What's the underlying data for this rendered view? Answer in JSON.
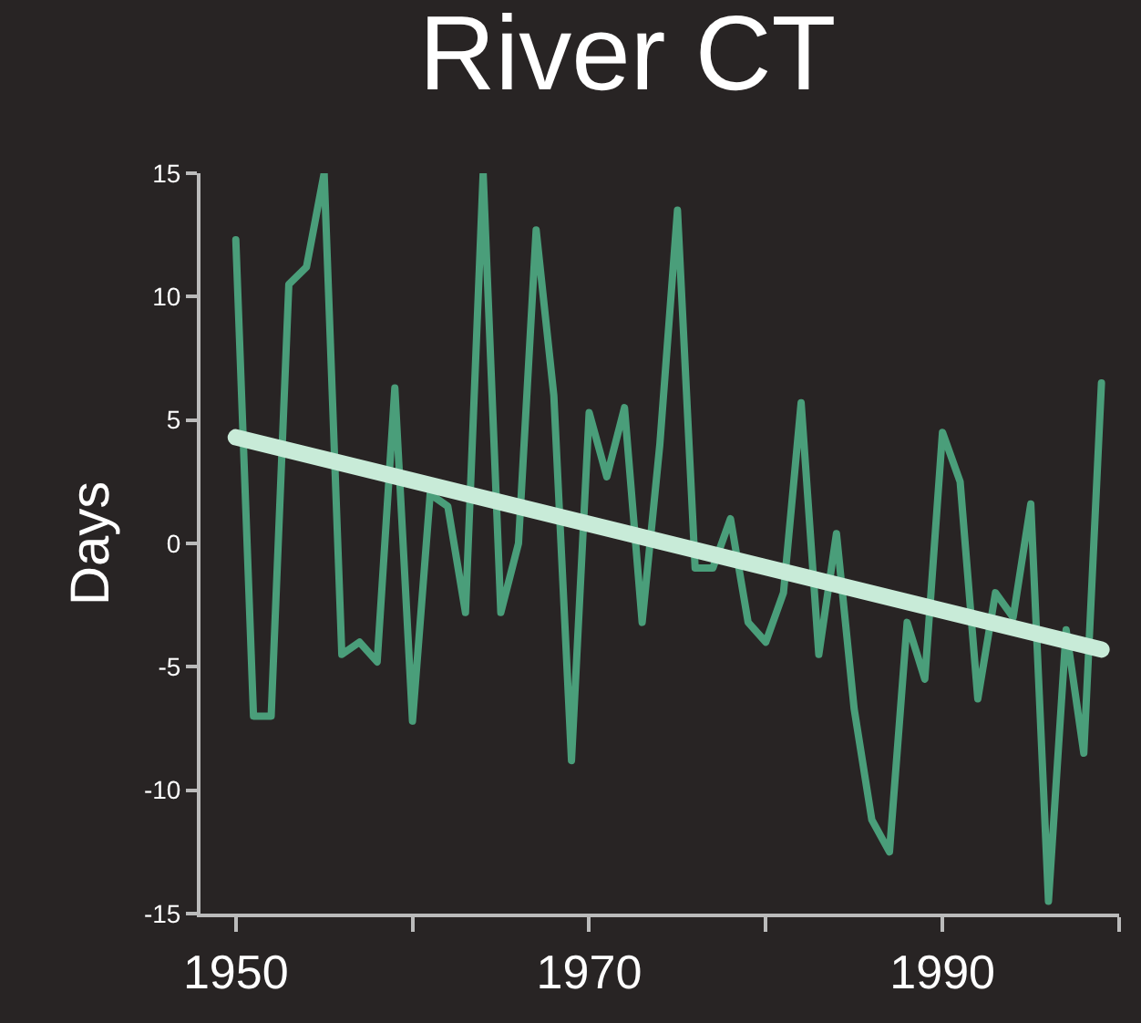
{
  "chart_data": {
    "type": "line",
    "title": "River CT",
    "ylabel": "Days",
    "x": [
      1950,
      1951,
      1952,
      1953,
      1954,
      1955,
      1956,
      1957,
      1958,
      1959,
      1960,
      1961,
      1962,
      1963,
      1964,
      1965,
      1966,
      1967,
      1968,
      1969,
      1970,
      1971,
      1972,
      1973,
      1974,
      1975,
      1976,
      1977,
      1978,
      1979,
      1980,
      1981,
      1982,
      1983,
      1984,
      1985,
      1986,
      1987,
      1988,
      1989,
      1990,
      1991,
      1992,
      1993,
      1994,
      1995,
      1996,
      1997,
      1998,
      1999
    ],
    "series": [
      {
        "color": "#4a9e7a",
        "values": [
          12.3,
          -7,
          -7,
          10.5,
          11.2,
          15,
          -4.5,
          -4,
          -4.8,
          6.3,
          -7.2,
          2,
          1.5,
          -2.8,
          15,
          -2.8,
          0,
          12.7,
          6,
          -8.8,
          5.3,
          2.7,
          5.5,
          -3.2,
          4,
          13.5,
          -1,
          -1,
          1,
          -3.2,
          -4,
          -2,
          5.7,
          -4.5,
          0.4,
          -6.7,
          -11.2,
          -12.5,
          -3.2,
          -5.5,
          4.5,
          2.5,
          -6.3,
          -2,
          -3,
          1.6,
          -14.5,
          -3.5,
          -8.5,
          6.5
        ]
      },
      {
        "type": "line",
        "color": "#c8ebd8",
        "x": [
          1950,
          1999
        ],
        "values": [
          4.3,
          -4.3
        ]
      }
    ],
    "xlim": [
      1948,
      2000
    ],
    "ylim": [
      -15,
      15
    ],
    "xticks": [
      1950,
      {
        "value": 1960,
        "label": null
      },
      1970,
      {
        "value": 1980,
        "label": null
      },
      1990,
      {
        "value": 2000,
        "label": null
      }
    ],
    "yticks": [
      -15,
      -10,
      -5,
      0,
      5,
      10,
      15
    ],
    "grid": false,
    "marker": "none",
    "line_style": "solid"
  }
}
